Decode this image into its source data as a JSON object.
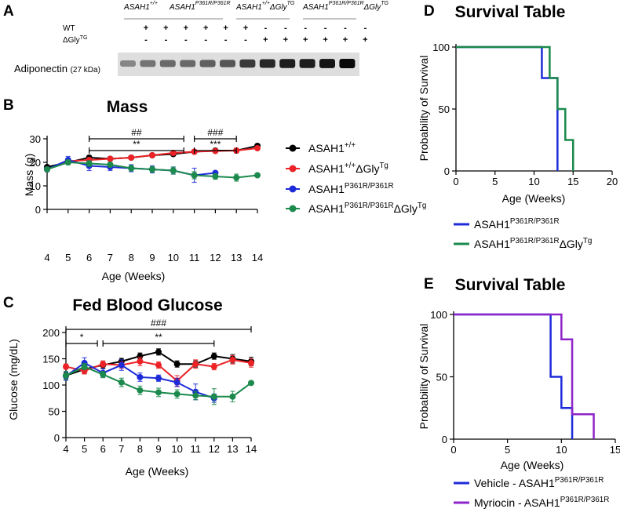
{
  "panel_letters": {
    "a": "A",
    "b": "B",
    "c": "C",
    "d": "D",
    "e": "E"
  },
  "blot": {
    "groups": [
      {
        "base": "ASAH1",
        "sup": "+/+",
        "suffix": "",
        "suffix_sup": ""
      },
      {
        "base": "ASAH1",
        "sup": "P361R/P361R",
        "suffix": "",
        "suffix_sup": ""
      },
      {
        "base": "ASAH1",
        "sup": "+/+",
        "suffix": "ΔGly",
        "suffix_sup": "TG"
      },
      {
        "base": "ASAH1",
        "sup": "P361R/P361R",
        "suffix": "ΔGly",
        "suffix_sup": "TG"
      }
    ],
    "row_labels": {
      "wt": "WT",
      "gly_base": "ΔGly",
      "gly_sup": "TG"
    },
    "wt_signs": [
      "+",
      "+",
      "+",
      "+",
      "+",
      "+",
      "-",
      "-",
      "-",
      "-",
      "-",
      "-"
    ],
    "gly_signs": [
      "-",
      "-",
      "-",
      "-",
      "-",
      "-",
      "+",
      "+",
      "+",
      "+",
      "+",
      "+"
    ],
    "band_label": "Adiponectin",
    "band_kda": "(27 kDa)"
  },
  "legend_bc": {
    "entries": [
      {
        "base": "ASAH1",
        "sup": "+/+",
        "suffix": "",
        "suffix_sup": "",
        "color": "#000000"
      },
      {
        "base": "ASAH1",
        "sup": "+/+",
        "suffix": "ΔGly",
        "suffix_sup": "Tg",
        "color": "#ec2227"
      },
      {
        "base": "ASAH1",
        "sup": "P361R/P361R",
        "suffix": "",
        "suffix_sup": "",
        "color": "#1d2bd9"
      },
      {
        "base": "ASAH1",
        "sup": "P361R/P361R",
        "suffix": "ΔGly",
        "suffix_sup": "Tg",
        "color": "#1b8a4c"
      }
    ]
  },
  "chart_data": [
    {
      "id": "mass",
      "type": "line",
      "title": "Mass",
      "xlabel": "Age (Weeks)",
      "ylabel": "Mass (g)",
      "xlim": [
        4,
        14
      ],
      "ylim": [
        0,
        30
      ],
      "xticks": [
        4,
        5,
        6,
        7,
        8,
        9,
        10,
        11,
        12,
        13,
        14
      ],
      "yticks": [
        0,
        10,
        20,
        30
      ],
      "series": [
        {
          "name": "ASAH1+/+",
          "color": "#000000",
          "x": [
            4,
            5,
            6,
            7,
            8,
            9,
            10,
            11,
            12,
            13,
            14
          ],
          "y": [
            18.0,
            20.0,
            22.0,
            21.5,
            22.0,
            23.0,
            23.5,
            24.5,
            25.0,
            25.0,
            27.0
          ],
          "err": [
            0.5,
            0.8,
            0.9,
            0.8,
            0.8,
            0.7,
            0.7,
            0.6,
            0.7,
            0.8,
            0.6
          ]
        },
        {
          "name": "ASAH1+/+ΔGlyTg",
          "color": "#ec2227",
          "x": [
            4,
            5,
            6,
            7,
            8,
            9,
            10,
            11,
            12,
            13,
            14
          ],
          "y": [
            17.0,
            20.5,
            21.0,
            21.5,
            22.0,
            23.0,
            24.0,
            24.5,
            24.8,
            25.0,
            26.0
          ],
          "err": [
            0.6,
            0.8,
            0.8,
            0.8,
            0.8,
            0.8,
            0.8,
            0.7,
            0.8,
            1.0,
            0.6
          ]
        },
        {
          "name": "ASAH1P361R/P361R",
          "color": "#1d2bd9",
          "x": [
            4,
            5,
            6,
            7,
            8,
            9,
            10,
            11,
            12
          ],
          "y": [
            17.0,
            21.0,
            18.5,
            18.0,
            17.5,
            17.0,
            16.5,
            14.5,
            15.5
          ],
          "err": [
            1.0,
            1.5,
            2.0,
            1.5,
            1.5,
            1.5,
            1.5,
            3.0,
            0.5
          ]
        },
        {
          "name": "ASAH1P361R/P361RΔGlyTg",
          "color": "#1b8a4c",
          "x": [
            4,
            5,
            6,
            7,
            8,
            9,
            10,
            11,
            12,
            13,
            14
          ],
          "y": [
            17.0,
            20.0,
            19.5,
            19.0,
            17.5,
            17.0,
            16.5,
            14.5,
            14.0,
            13.5,
            14.5
          ],
          "err": [
            0.8,
            1.0,
            1.2,
            1.0,
            1.2,
            1.2,
            1.5,
            1.5,
            1.2,
            1.5,
            0.5
          ]
        }
      ],
      "brackets": [
        {
          "label": "##",
          "x1": 6,
          "x2": 10.5,
          "level": 2
        },
        {
          "label": "**",
          "x1": 6,
          "x2": 10.5,
          "level": 1
        },
        {
          "label": "###",
          "x1": 11,
          "x2": 13,
          "level": 2
        },
        {
          "label": "***",
          "x1": 11,
          "x2": 13,
          "level": 1
        }
      ]
    },
    {
      "id": "glucose",
      "type": "line",
      "title": "Fed Blood Glucose",
      "xlabel": "Age (Weeks)",
      "ylabel": "Glucose (mg/dL)",
      "xlim": [
        4,
        14
      ],
      "ylim": [
        0,
        200
      ],
      "xticks": [
        4,
        5,
        6,
        7,
        8,
        9,
        10,
        11,
        12,
        13,
        14
      ],
      "yticks": [
        0,
        50,
        100,
        150,
        200
      ],
      "series": [
        {
          "name": "ASAH1+/+",
          "color": "#000000",
          "x": [
            4,
            5,
            6,
            7,
            8,
            9,
            10,
            11,
            12,
            13,
            14
          ],
          "y": [
            118,
            130,
            138,
            145,
            155,
            163,
            140,
            140,
            155,
            150,
            145
          ],
          "err": [
            6,
            8,
            6,
            6,
            6,
            6,
            6,
            6,
            6,
            8,
            8
          ]
        },
        {
          "name": "ASAH1+/+ΔGlyTg",
          "color": "#ec2227",
          "x": [
            4,
            5,
            6,
            7,
            8,
            9,
            10,
            11,
            12,
            13,
            14
          ],
          "y": [
            135,
            127,
            140,
            138,
            145,
            138,
            108,
            140,
            135,
            148,
            142
          ],
          "err": [
            5,
            6,
            6,
            6,
            8,
            6,
            10,
            8,
            6,
            8,
            8
          ]
        },
        {
          "name": "ASAH1P361R/P361R",
          "color": "#1d2bd9",
          "x": [
            4,
            5,
            6,
            7,
            8,
            9,
            10,
            11,
            12
          ],
          "y": [
            117,
            142,
            123,
            138,
            115,
            113,
            105,
            87,
            75
          ],
          "err": [
            8,
            10,
            8,
            10,
            8,
            6,
            8,
            15,
            8
          ]
        },
        {
          "name": "ASAH1P361R/P361RΔGlyTg",
          "color": "#1b8a4c",
          "x": [
            4,
            5,
            6,
            7,
            8,
            9,
            10,
            11,
            12,
            13,
            14
          ],
          "y": [
            118,
            135,
            120,
            105,
            90,
            86,
            83,
            80,
            78,
            78,
            104
          ],
          "err": [
            8,
            6,
            6,
            8,
            8,
            8,
            8,
            8,
            15,
            10,
            2
          ]
        }
      ],
      "brackets": [
        {
          "label": "###",
          "x1": 4,
          "x2": 14,
          "level": 2
        },
        {
          "label": "*",
          "x1": 4,
          "x2": 5.7,
          "level": 1
        },
        {
          "label": "**",
          "x1": 6,
          "x2": 12,
          "level": 1
        }
      ]
    },
    {
      "id": "survival_d",
      "type": "line",
      "title": "Survival Table",
      "xlabel": "Age (Weeks)",
      "ylabel": "Probability of Survival",
      "xlim": [
        0,
        20
      ],
      "ylim": [
        0,
        100
      ],
      "xticks": [
        0,
        5,
        10,
        15,
        20
      ],
      "yticks": [
        0,
        50,
        100
      ],
      "series": [
        {
          "name": "ASAH1P361R/P361R",
          "color": "#1d2bd9",
          "steps": [
            [
              0,
              100
            ],
            [
              11,
              100
            ],
            [
              11,
              75
            ],
            [
              13,
              75
            ],
            [
              13,
              0
            ]
          ]
        },
        {
          "name": "ASAH1P361R/P361RΔGlyTg",
          "color": "#1b8a4c",
          "steps": [
            [
              0,
              100
            ],
            [
              12,
              100
            ],
            [
              12,
              75
            ],
            [
              13,
              75
            ],
            [
              13,
              50
            ],
            [
              14,
              50
            ],
            [
              14,
              25
            ],
            [
              15,
              25
            ],
            [
              15,
              0
            ]
          ]
        }
      ],
      "legend": [
        {
          "base": "ASAH1",
          "sup": "P361R/P361R",
          "suffix": "",
          "suffix_sup": "",
          "color": "#1d2bd9"
        },
        {
          "base": "ASAH1",
          "sup": "P361R/P361R",
          "suffix": "ΔGly",
          "suffix_sup": "Tg",
          "color": "#1b8a4c"
        }
      ]
    },
    {
      "id": "survival_e",
      "type": "line",
      "title": "Survival Table",
      "xlabel": "Age (Weeks)",
      "ylabel": "Probability of Survival",
      "xlim": [
        0,
        15
      ],
      "ylim": [
        0,
        100
      ],
      "xticks": [
        0,
        5,
        10,
        15
      ],
      "yticks": [
        0,
        50,
        100
      ],
      "series": [
        {
          "name": "Vehicle - ASAH1P361R/P361R",
          "color": "#1d2bd9",
          "steps": [
            [
              0,
              100
            ],
            [
              9,
              100
            ],
            [
              9,
              50
            ],
            [
              10,
              50
            ],
            [
              10,
              25
            ],
            [
              11,
              25
            ],
            [
              11,
              0
            ]
          ]
        },
        {
          "name": "Myriocin - ASAH1P361R/P361R",
          "color": "#8e24c9",
          "steps": [
            [
              0,
              100
            ],
            [
              10,
              100
            ],
            [
              10,
              80
            ],
            [
              11,
              80
            ],
            [
              11,
              20
            ],
            [
              13,
              20
            ],
            [
              13,
              0
            ]
          ]
        }
      ],
      "legend": [
        {
          "base": "Vehicle - ASAH1",
          "sup": "P361R/P361R",
          "suffix": "",
          "suffix_sup": "",
          "color": "#1d2bd9"
        },
        {
          "base": "Myriocin - ASAH1",
          "sup": "P361R/P361R",
          "suffix": "",
          "suffix_sup": "",
          "color": "#8e24c9"
        }
      ]
    }
  ]
}
